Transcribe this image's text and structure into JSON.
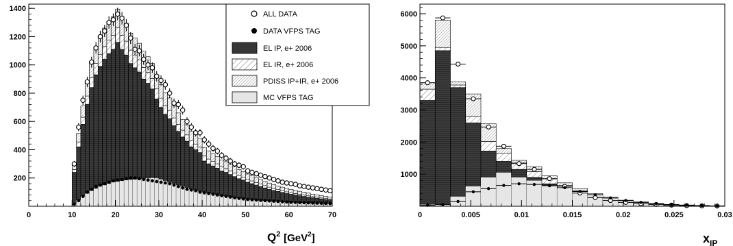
{
  "chart_data": [
    {
      "type": "bar",
      "xlabel_main": "Q",
      "xlabel_sup": "2",
      "xlabel_unit": "[GeV",
      "xlabel_unit_sup": "2",
      "xlabel_close": "]",
      "xlim": [
        0,
        70
      ],
      "ylim": [
        0,
        1430
      ],
      "xticks": [
        0,
        10,
        20,
        30,
        40,
        50,
        60,
        70
      ],
      "yticks": [
        200,
        400,
        600,
        800,
        1000,
        1200,
        1400
      ],
      "legend": {
        "position": "top-right",
        "entries": [
          {
            "label": "ALL DATA",
            "marker": "open-circle"
          },
          {
            "label": "DATA VFPS TAG",
            "marker": "filled-circle"
          },
          {
            "label": "EL IP, e+ 2006",
            "fill": "dark-hatched"
          },
          {
            "label": "EL IR, e+ 2006",
            "fill": "hatched"
          },
          {
            "label": "PDISS IP+IR, e+ 2006",
            "fill": "dense-hatched"
          },
          {
            "label": "MC VFPS TAG",
            "fill": "light-gray"
          }
        ]
      },
      "bin_edges": [
        10,
        11,
        12,
        13,
        14,
        15,
        16,
        17,
        18,
        19,
        20,
        21,
        22,
        23,
        24,
        25,
        26,
        27,
        28,
        29,
        30,
        31,
        32,
        33,
        34,
        35,
        36,
        37,
        38,
        39,
        40,
        41,
        42,
        43,
        44,
        45,
        46,
        47,
        48,
        49,
        50,
        51,
        52,
        53,
        54,
        55,
        56,
        57,
        58,
        59,
        60,
        61,
        62,
        63,
        64,
        65,
        66,
        67,
        68,
        69,
        70
      ],
      "series": [
        {
          "name": "EL IP, e+ 2006",
          "values": [
            240,
            420,
            580,
            720,
            840,
            930,
            990,
            1040,
            1080,
            1110,
            1160,
            1110,
            1070,
            1010,
            980,
            950,
            900,
            870,
            830,
            760,
            700,
            650,
            620,
            570,
            530,
            490,
            460,
            420,
            400,
            380,
            320,
            300,
            285,
            270,
            250,
            240,
            225,
            210,
            195,
            185,
            170,
            160,
            150,
            140,
            130,
            120,
            112,
            105,
            98,
            90,
            85,
            80,
            75,
            70,
            65,
            60,
            56,
            52,
            48,
            45
          ]
        },
        {
          "name": "EL IR, e+ 2006",
          "values": [
            20,
            35,
            50,
            60,
            70,
            80,
            85,
            90,
            95,
            100,
            105,
            100,
            98,
            95,
            90,
            85,
            82,
            78,
            75,
            70,
            65,
            60,
            58,
            55,
            50,
            48,
            45,
            42,
            40,
            38,
            36,
            34,
            32,
            30,
            28,
            27,
            25,
            24,
            22,
            21,
            20,
            19,
            18,
            17,
            16,
            15,
            14,
            13,
            12,
            12,
            11,
            10,
            10,
            9,
            9,
            8,
            8,
            7,
            7,
            6
          ]
        },
        {
          "name": "PDISS IP+IR, e+ 2006",
          "values": [
            30,
            60,
            80,
            100,
            110,
            120,
            125,
            130,
            130,
            130,
            130,
            130,
            125,
            120,
            120,
            118,
            115,
            110,
            105,
            100,
            95,
            92,
            88,
            85,
            80,
            76,
            72,
            70,
            66,
            62,
            60,
            58,
            55,
            52,
            50,
            48,
            46,
            44,
            42,
            40,
            38,
            36,
            34,
            32,
            30,
            29,
            28,
            26,
            25,
            24,
            23,
            22,
            21,
            20,
            19,
            18,
            17,
            16,
            15,
            14
          ]
        },
        {
          "name": "MC VFPS TAG",
          "values": [
            20,
            45,
            70,
            90,
            110,
            125,
            140,
            150,
            160,
            170,
            175,
            180,
            185,
            188,
            190,
            192,
            195,
            198,
            200,
            198,
            190,
            180,
            170,
            160,
            150,
            140,
            130,
            120,
            112,
            105,
            98,
            92,
            86,
            80,
            75,
            70,
            65,
            60,
            56,
            52,
            48,
            45,
            42,
            40,
            38,
            36,
            34,
            32,
            30,
            28,
            27,
            26,
            25,
            24,
            23,
            22,
            21,
            20,
            19,
            18
          ]
        },
        {
          "name": "ALL DATA",
          "values": [
            300,
            560,
            750,
            880,
            1020,
            1120,
            1200,
            1240,
            1300,
            1320,
            1360,
            1330,
            1280,
            1190,
            1110,
            1100,
            1040,
            1000,
            980,
            920,
            890,
            860,
            800,
            730,
            720,
            680,
            600,
            560,
            520,
            520,
            470,
            440,
            410,
            390,
            360,
            340,
            320,
            300,
            290,
            280,
            250,
            240,
            230,
            220,
            210,
            200,
            190,
            180,
            170,
            165,
            160,
            155,
            145,
            140,
            135,
            130,
            125,
            120,
            115,
            110
          ]
        },
        {
          "name": "DATA VFPS TAG",
          "values": [
            15,
            40,
            70,
            100,
            120,
            140,
            150,
            160,
            170,
            180,
            185,
            190,
            195,
            200,
            200,
            195,
            190,
            185,
            180,
            175,
            170,
            165,
            160,
            150,
            140,
            130,
            120,
            115,
            110,
            100,
            95,
            90,
            85,
            80,
            75,
            70,
            65,
            60,
            56,
            52,
            48,
            46,
            44,
            42,
            40,
            38,
            36,
            34,
            32,
            30,
            28,
            27,
            26,
            25,
            24,
            23,
            22,
            21,
            20,
            19
          ]
        }
      ]
    },
    {
      "type": "bar",
      "xlabel_main": "x",
      "xlabel_sub": "IP",
      "xlim": [
        0,
        0.03
      ],
      "ylim": [
        0,
        6300
      ],
      "xticks": [
        0,
        0.005,
        0.01,
        0.015,
        0.02,
        0.025,
        0.03
      ],
      "xticklabels": [
        "0",
        "0.005",
        "0.01",
        "0.015",
        "0.02",
        "0.025",
        "0.03"
      ],
      "yticks": [
        1000,
        2000,
        3000,
        4000,
        5000,
        6000
      ],
      "bin_edges": [
        0,
        0.0015,
        0.003,
        0.0045,
        0.006,
        0.0075,
        0.009,
        0.0105,
        0.012,
        0.0135,
        0.015,
        0.0165,
        0.018,
        0.0195,
        0.021,
        0.0225,
        0.024,
        0.0255,
        0.027,
        0.0285,
        0.03
      ],
      "series": [
        {
          "name": "EL IP, e+ 2006",
          "values": [
            3300,
            4850,
            3700,
            2600,
            1720,
            1400,
            1150,
            900,
            700,
            520,
            380,
            260,
            180,
            120,
            80,
            50,
            30,
            20,
            12,
            8
          ]
        },
        {
          "name": "EL IR, e+ 2006",
          "values": [
            350,
            100,
            80,
            200,
            300,
            250,
            200,
            180,
            150,
            130,
            110,
            90,
            70,
            50,
            40,
            30,
            20,
            15,
            10,
            5
          ]
        },
        {
          "name": "PDISS IP+IR, e+ 2006",
          "values": [
            200,
            850,
            100,
            700,
            550,
            150,
            80,
            150,
            100,
            80,
            60,
            40,
            30,
            20,
            15,
            10,
            8,
            5,
            3,
            2
          ]
        },
        {
          "name": "MC VFPS TAG",
          "values": [
            50,
            60,
            300,
            620,
            900,
            1050,
            900,
            800,
            650,
            550,
            450,
            350,
            250,
            180,
            120,
            80,
            50,
            30,
            20,
            10
          ]
        },
        {
          "name": "ALL DATA",
          "values": [
            3850,
            5870,
            4430,
            3350,
            2470,
            1870,
            1330,
            1150,
            860,
            620,
            410,
            270,
            180,
            120,
            80,
            55,
            35,
            20,
            12,
            6
          ]
        },
        {
          "name": "DATA VFPS TAG",
          "values": [
            30,
            50,
            150,
            450,
            550,
            650,
            700,
            680,
            640,
            580,
            460,
            360,
            260,
            180,
            120,
            80,
            50,
            30,
            20,
            10
          ]
        }
      ]
    }
  ]
}
